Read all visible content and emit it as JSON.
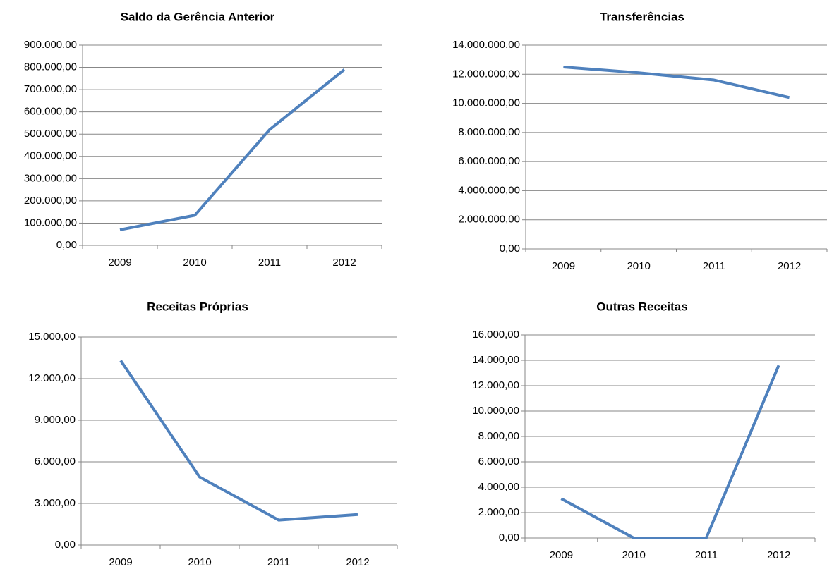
{
  "chart_data": [
    {
      "type": "line",
      "title": "Saldo da Gerência Anterior",
      "categories": [
        "2009",
        "2010",
        "2011",
        "2012"
      ],
      "series": [
        {
          "color": "#4f81bd",
          "values": [
            70000,
            135000,
            520000,
            790000
          ]
        }
      ],
      "ylim": [
        0,
        900000
      ],
      "yticks": [
        {
          "value": 0,
          "label": "0,00"
        },
        {
          "value": 100000,
          "label": "100.000,00"
        },
        {
          "value": 200000,
          "label": "200.000,00"
        },
        {
          "value": 300000,
          "label": "300.000,00"
        },
        {
          "value": 400000,
          "label": "400.000,00"
        },
        {
          "value": 500000,
          "label": "500.000,00"
        },
        {
          "value": 600000,
          "label": "600.000,00"
        },
        {
          "value": 700000,
          "label": "700.000,00"
        },
        {
          "value": 800000,
          "label": "800.000,00"
        },
        {
          "value": 900000,
          "label": "900.000,00"
        }
      ],
      "grid": true
    },
    {
      "type": "line",
      "title": "Transferências",
      "categories": [
        "2009",
        "2010",
        "2011",
        "2012"
      ],
      "series": [
        {
          "color": "#4f81bd",
          "values": [
            12500000,
            12100000,
            11600000,
            10400000
          ]
        }
      ],
      "ylim": [
        0,
        14000000
      ],
      "yticks": [
        {
          "value": 0,
          "label": "0,00"
        },
        {
          "value": 2000000,
          "label": "2.000.000,00"
        },
        {
          "value": 4000000,
          "label": "4.000.000,00"
        },
        {
          "value": 6000000,
          "label": "6.000.000,00"
        },
        {
          "value": 8000000,
          "label": "8.000.000,00"
        },
        {
          "value": 10000000,
          "label": "10.000.000,00"
        },
        {
          "value": 12000000,
          "label": "12.000.000,00"
        },
        {
          "value": 14000000,
          "label": "14.000.000,00"
        }
      ],
      "grid": true
    },
    {
      "type": "line",
      "title": "Receitas Próprias",
      "categories": [
        "2009",
        "2010",
        "2011",
        "2012"
      ],
      "series": [
        {
          "color": "#4f81bd",
          "values": [
            13300,
            4900,
            1800,
            2200
          ]
        }
      ],
      "ylim": [
        0,
        15000
      ],
      "yticks": [
        {
          "value": 0,
          "label": "0,00"
        },
        {
          "value": 3000,
          "label": "3.000,00"
        },
        {
          "value": 6000,
          "label": "6.000,00"
        },
        {
          "value": 9000,
          "label": "9.000,00"
        },
        {
          "value": 12000,
          "label": "12.000,00"
        },
        {
          "value": 15000,
          "label": "15.000,00"
        }
      ],
      "grid": true
    },
    {
      "type": "line",
      "title": "Outras Receitas",
      "categories": [
        "2009",
        "2010",
        "2011",
        "2012"
      ],
      "series": [
        {
          "color": "#4f81bd",
          "values": [
            3100,
            0,
            0,
            13600
          ]
        }
      ],
      "ylim": [
        0,
        16000
      ],
      "yticks": [
        {
          "value": 0,
          "label": "0,00"
        },
        {
          "value": 2000,
          "label": "2.000,00"
        },
        {
          "value": 4000,
          "label": "4.000,00"
        },
        {
          "value": 6000,
          "label": "6.000,00"
        },
        {
          "value": 8000,
          "label": "8.000,00"
        },
        {
          "value": 10000,
          "label": "10.000,00"
        },
        {
          "value": 12000,
          "label": "12.000,00"
        },
        {
          "value": 14000,
          "label": "14.000,00"
        },
        {
          "value": 16000,
          "label": "16.000,00"
        }
      ],
      "grid": true
    }
  ]
}
